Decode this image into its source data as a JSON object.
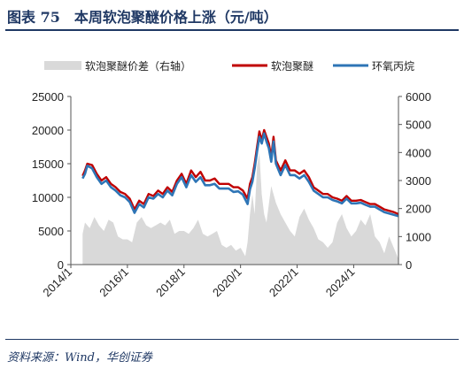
{
  "title": "图表 75　本周软泡聚醚价格上涨（元/吨）",
  "source": "资料来源：Wind，华创证券",
  "colors": {
    "title": "#1f3864",
    "spread": "#d9d9d9",
    "polyether": "#c00000",
    "propylene_oxide": "#2e75b6"
  },
  "chart_data": {
    "type": "line",
    "x_ticks": [
      "2014/1",
      "2016/1",
      "2018/1",
      "2020/1",
      "2022/1",
      "2024/1"
    ],
    "x_range": [
      "2014/1",
      "2025/8"
    ],
    "ylim_left": [
      0,
      25000
    ],
    "yticks_left": [
      0,
      5000,
      10000,
      15000,
      20000,
      25000
    ],
    "ylim_right": [
      0,
      6000
    ],
    "yticks_right": [
      0,
      1000,
      2000,
      3000,
      4000,
      5000,
      6000
    ],
    "legend_position": "top",
    "series": [
      {
        "name": "软泡聚醚价差（右轴）",
        "type": "area",
        "axis": "right",
        "x": [
          "2014/6",
          "2014/7",
          "2014/9",
          "2014/11",
          "2015/1",
          "2015/3",
          "2015/5",
          "2015/7",
          "2015/9",
          "2015/11",
          "2016/1",
          "2016/3",
          "2016/5",
          "2016/7",
          "2016/9",
          "2016/11",
          "2017/1",
          "2017/3",
          "2017/5",
          "2017/7",
          "2017/9",
          "2017/11",
          "2018/1",
          "2018/3",
          "2018/5",
          "2018/7",
          "2018/9",
          "2018/11",
          "2019/1",
          "2019/3",
          "2019/5",
          "2019/7",
          "2019/9",
          "2019/11",
          "2020/1",
          "2020/3",
          "2020/4",
          "2020/5",
          "2020/6",
          "2020/7",
          "2020/8",
          "2020/9",
          "2020/10",
          "2020/11",
          "2020/12",
          "2021/2",
          "2021/4",
          "2021/6",
          "2021/8",
          "2021/10",
          "2021/12",
          "2022/2",
          "2022/4",
          "2022/6",
          "2022/8",
          "2022/10",
          "2022/12",
          "2023/2",
          "2023/4",
          "2023/6",
          "2023/8",
          "2023/10",
          "2023/12",
          "2024/2",
          "2024/4",
          "2024/6",
          "2024/8",
          "2024/10",
          "2024/12",
          "2025/2",
          "2025/4",
          "2025/6",
          "2025/8"
        ],
        "values": [
          1100,
          1500,
          1300,
          1700,
          1400,
          1200,
          1600,
          1500,
          1000,
          900,
          900,
          800,
          1500,
          1700,
          1400,
          1300,
          1400,
          1500,
          1400,
          1600,
          1100,
          1200,
          1200,
          1100,
          1300,
          1600,
          1100,
          1000,
          1100,
          1200,
          700,
          600,
          700,
          500,
          600,
          300,
          800,
          1800,
          2500,
          1800,
          3500,
          4000,
          2500,
          1800,
          1500,
          2800,
          2200,
          1800,
          1500,
          1200,
          1000,
          1700,
          2000,
          1600,
          1300,
          900,
          800,
          600,
          800,
          1500,
          1800,
          1300,
          1000,
          1200,
          1600,
          1400,
          1800,
          1000,
          800,
          400,
          1000,
          600,
          200
        ]
      },
      {
        "name": "软泡聚醚",
        "axis": "left",
        "x": [
          "2014/6",
          "2014/7",
          "2014/8",
          "2014/10",
          "2014/12",
          "2015/2",
          "2015/4",
          "2015/6",
          "2015/8",
          "2015/10",
          "2015/12",
          "2016/2",
          "2016/4",
          "2016/6",
          "2016/8",
          "2016/10",
          "2016/12",
          "2017/2",
          "2017/4",
          "2017/6",
          "2017/8",
          "2017/10",
          "2017/12",
          "2018/2",
          "2018/4",
          "2018/6",
          "2018/8",
          "2018/10",
          "2018/12",
          "2019/2",
          "2019/4",
          "2019/6",
          "2019/8",
          "2019/10",
          "2019/12",
          "2020/2",
          "2020/4",
          "2020/5",
          "2020/6",
          "2020/7",
          "2020/8",
          "2020/9",
          "2020/10",
          "2020/11",
          "2020/12",
          "2021/1",
          "2021/2",
          "2021/3",
          "2021/4",
          "2021/6",
          "2021/8",
          "2021/10",
          "2021/12",
          "2022/2",
          "2022/4",
          "2022/6",
          "2022/8",
          "2022/10",
          "2022/12",
          "2023/2",
          "2023/4",
          "2023/6",
          "2023/8",
          "2023/10",
          "2023/12",
          "2024/2",
          "2024/4",
          "2024/6",
          "2024/8",
          "2024/10",
          "2024/12",
          "2025/2",
          "2025/4",
          "2025/6",
          "2025/8"
        ],
        "values": [
          13200,
          14000,
          15000,
          14800,
          13500,
          12500,
          13000,
          12000,
          11500,
          10800,
          10500,
          9800,
          8200,
          9500,
          9000,
          10500,
          10200,
          11000,
          10500,
          11500,
          10800,
          12500,
          13500,
          12000,
          14000,
          13000,
          13800,
          12500,
          12500,
          12800,
          12000,
          12000,
          12000,
          11500,
          11500,
          11000,
          9800,
          12000,
          13000,
          15000,
          17500,
          19800,
          18500,
          20000,
          19000,
          18000,
          16000,
          19000,
          15500,
          14000,
          15500,
          14000,
          14000,
          13500,
          14000,
          13000,
          11500,
          11000,
          10500,
          10500,
          10000,
          9800,
          9500,
          10200,
          9500,
          9500,
          9600,
          9300,
          9000,
          9000,
          8600,
          8200,
          8000,
          7800,
          7500
        ]
      },
      {
        "name": "环氧丙烷",
        "axis": "left",
        "x": [
          "2014/6",
          "2014/7",
          "2014/8",
          "2014/10",
          "2014/12",
          "2015/2",
          "2015/4",
          "2015/6",
          "2015/8",
          "2015/10",
          "2015/12",
          "2016/2",
          "2016/4",
          "2016/6",
          "2016/8",
          "2016/10",
          "2016/12",
          "2017/2",
          "2017/4",
          "2017/6",
          "2017/8",
          "2017/10",
          "2017/12",
          "2018/2",
          "2018/4",
          "2018/6",
          "2018/8",
          "2018/10",
          "2018/12",
          "2019/2",
          "2019/4",
          "2019/6",
          "2019/8",
          "2019/10",
          "2019/12",
          "2020/2",
          "2020/4",
          "2020/5",
          "2020/6",
          "2020/7",
          "2020/8",
          "2020/9",
          "2020/10",
          "2020/11",
          "2020/12",
          "2021/1",
          "2021/2",
          "2021/3",
          "2021/4",
          "2021/6",
          "2021/8",
          "2021/10",
          "2021/12",
          "2022/2",
          "2022/4",
          "2022/6",
          "2022/8",
          "2022/10",
          "2022/12",
          "2023/2",
          "2023/4",
          "2023/6",
          "2023/8",
          "2023/10",
          "2023/12",
          "2024/2",
          "2024/4",
          "2024/6",
          "2024/8",
          "2024/10",
          "2024/12",
          "2025/2",
          "2025/4",
          "2025/6",
          "2025/8"
        ],
        "values": [
          12800,
          13500,
          14700,
          14300,
          13000,
          12000,
          12500,
          11500,
          11000,
          10300,
          10000,
          9300,
          7700,
          9000,
          8500,
          10000,
          9800,
          10500,
          10000,
          11000,
          10300,
          12000,
          13000,
          11500,
          13300,
          12300,
          13000,
          11800,
          11800,
          12000,
          11300,
          11300,
          11300,
          10800,
          10900,
          10400,
          9000,
          11200,
          12300,
          14300,
          16800,
          19000,
          18000,
          19500,
          18300,
          17300,
          15300,
          18300,
          15000,
          13300,
          14800,
          13300,
          13300,
          12800,
          13300,
          12300,
          11000,
          10500,
          10000,
          10000,
          9600,
          9400,
          9100,
          9800,
          9100,
          9100,
          9200,
          8900,
          8600,
          8600,
          8200,
          7800,
          7600,
          7400,
          7200
        ]
      }
    ]
  }
}
